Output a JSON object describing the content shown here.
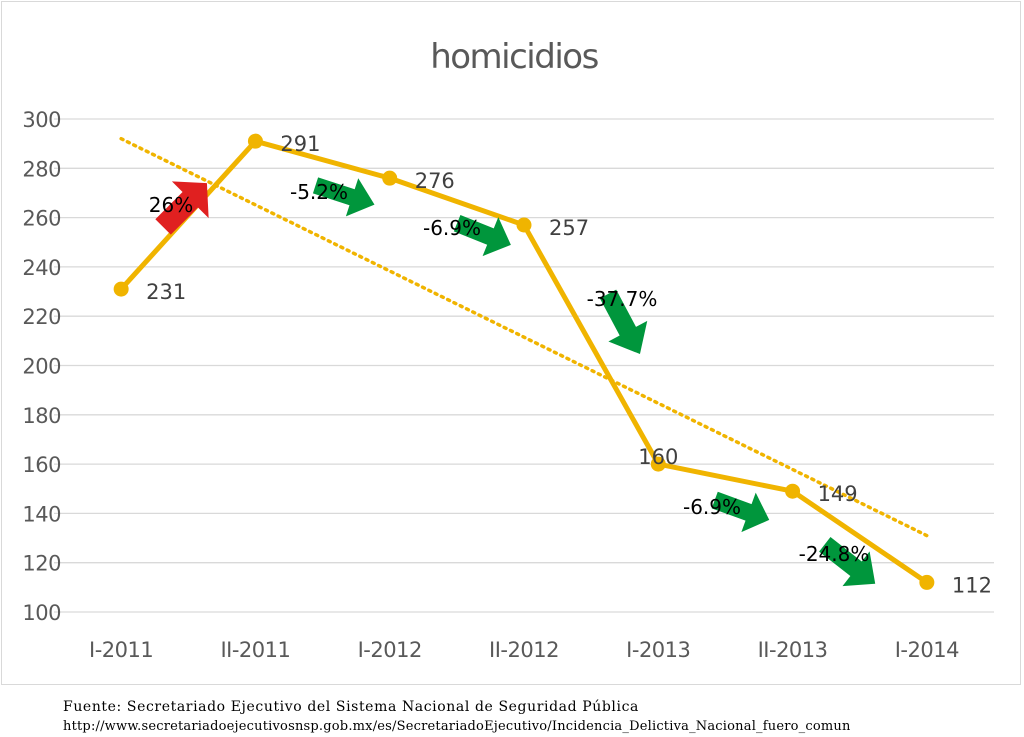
{
  "chart_data": {
    "type": "line",
    "title": "homicidios",
    "categories": [
      "I-2011",
      "II-2011",
      "I-2012",
      "II-2012",
      "I-2013",
      "II-2013",
      "I-2014"
    ],
    "series": [
      {
        "values": [
          231,
          291,
          276,
          257,
          160,
          149,
          112
        ],
        "color": "#f0b400"
      }
    ],
    "trendline": {
      "style": "dotted",
      "color": "#f0b400",
      "from_value": 292,
      "to_value": 131
    },
    "ylim": [
      100,
      300
    ],
    "yticks": [
      100,
      120,
      140,
      160,
      180,
      200,
      220,
      240,
      260,
      280,
      300
    ],
    "grid": true,
    "changes": [
      {
        "label": "26%",
        "direction": "up",
        "color": "#e02020"
      },
      {
        "label": "-5.2%",
        "direction": "down",
        "color": "#00963c"
      },
      {
        "label": "-6.9%",
        "direction": "down",
        "color": "#00963c"
      },
      {
        "label": "-37.7%",
        "direction": "down",
        "color": "#00963c"
      },
      {
        "label": "-6.9%",
        "direction": "down",
        "color": "#00963c"
      },
      {
        "label": "-24.8%",
        "direction": "down",
        "color": "#00963c"
      }
    ]
  },
  "footer": {
    "source_line": "Fuente: Secretariado Ejecutivo del Sistema Nacional de Seguridad Pública",
    "url_line": "http://www.secretariadoejecutivosnsp.gob.mx/es/SecretariadoEjecutivo/Incidencia_Delictiva_Nacional_fuero_comun"
  }
}
